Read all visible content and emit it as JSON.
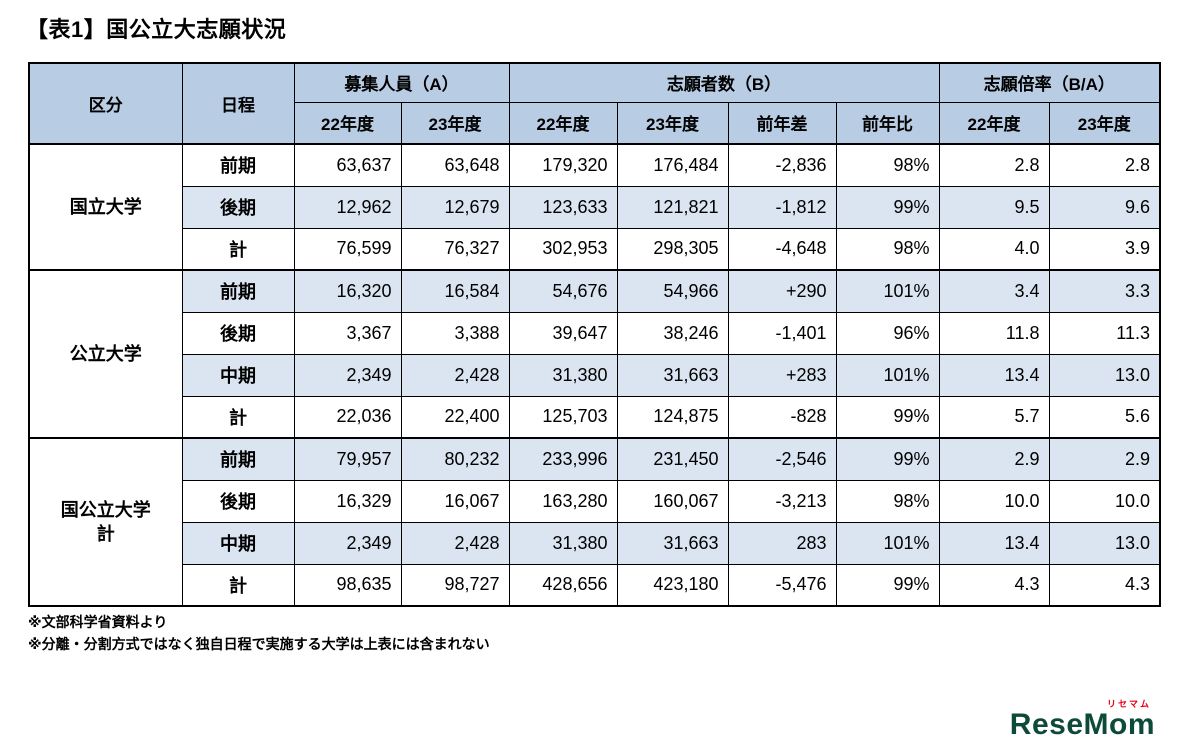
{
  "page": {
    "title": "【表1】国公立大志願状況",
    "footnotes": [
      "※文部科学省資料より",
      "※分離・分割方式ではなく独自日程で実施する大学は上表には含まれない"
    ],
    "logo": {
      "text": "ReseMom",
      "ruby": "リセマム"
    }
  },
  "colors": {
    "header_bg": "#b8cce4",
    "row_alt_bg": "#dbe5f1",
    "border": "#000000",
    "logo_green": "#0e4a3a",
    "logo_red": "#e60012"
  },
  "chart_data": {
    "type": "table",
    "title": "【表1】国公立大志願状況",
    "headers": {
      "category": "区分",
      "schedule": "日程",
      "capacity_group": "募集人員（A）",
      "applicants_group": "志願者数（B）",
      "ratio_group": "志願倍率（B/A）",
      "sub": [
        "22年度",
        "23年度",
        "22年度",
        "23年度",
        "前年差",
        "前年比",
        "22年度",
        "23年度"
      ]
    },
    "column_keys": [
      "capacity-22",
      "capacity-23",
      "applicants-22",
      "applicants-23",
      "yoy-diff",
      "yoy-ratio",
      "ratio-22",
      "ratio-23"
    ],
    "groups": [
      {
        "category": "国立大学",
        "rows": [
          {
            "schedule": "前期",
            "values": [
              "63,637",
              "63,648",
              "179,320",
              "176,484",
              "-2,836",
              "98%",
              "2.8",
              "2.8"
            ]
          },
          {
            "schedule": "後期",
            "values": [
              "12,962",
              "12,679",
              "123,633",
              "121,821",
              "-1,812",
              "99%",
              "9.5",
              "9.6"
            ]
          },
          {
            "schedule": "計",
            "values": [
              "76,599",
              "76,327",
              "302,953",
              "298,305",
              "-4,648",
              "98%",
              "4.0",
              "3.9"
            ]
          }
        ]
      },
      {
        "category": "公立大学",
        "rows": [
          {
            "schedule": "前期",
            "values": [
              "16,320",
              "16,584",
              "54,676",
              "54,966",
              "+290",
              "101%",
              "3.4",
              "3.3"
            ]
          },
          {
            "schedule": "後期",
            "values": [
              "3,367",
              "3,388",
              "39,647",
              "38,246",
              "-1,401",
              "96%",
              "11.8",
              "11.3"
            ]
          },
          {
            "schedule": "中期",
            "values": [
              "2,349",
              "2,428",
              "31,380",
              "31,663",
              "+283",
              "101%",
              "13.4",
              "13.0"
            ]
          },
          {
            "schedule": "計",
            "values": [
              "22,036",
              "22,400",
              "125,703",
              "124,875",
              "-828",
              "99%",
              "5.7",
              "5.6"
            ]
          }
        ]
      },
      {
        "category": "国公立大学\n計",
        "rows": [
          {
            "schedule": "前期",
            "values": [
              "79,957",
              "80,232",
              "233,996",
              "231,450",
              "-2,546",
              "99%",
              "2.9",
              "2.9"
            ]
          },
          {
            "schedule": "後期",
            "values": [
              "16,329",
              "16,067",
              "163,280",
              "160,067",
              "-3,213",
              "98%",
              "10.0",
              "10.0"
            ]
          },
          {
            "schedule": "中期",
            "values": [
              "2,349",
              "2,428",
              "31,380",
              "31,663",
              "283",
              "101%",
              "13.4",
              "13.0"
            ]
          },
          {
            "schedule": "計",
            "values": [
              "98,635",
              "98,727",
              "428,656",
              "423,180",
              "-5,476",
              "99%",
              "4.3",
              "4.3"
            ]
          }
        ]
      }
    ]
  }
}
